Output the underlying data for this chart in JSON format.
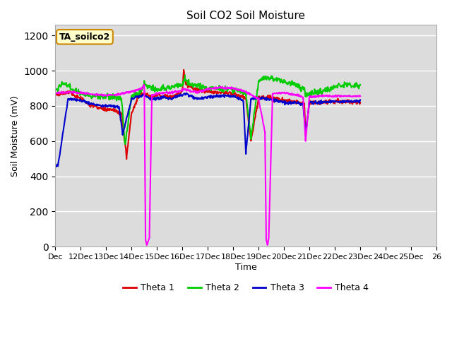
{
  "title": "Soil CO2 Soil Moisture",
  "ylabel": "Soil Moisture (mV)",
  "xlabel": "Time",
  "annotation": "TA_soilco2",
  "ylim": [
    0,
    1260
  ],
  "yticks": [
    0,
    200,
    400,
    600,
    800,
    1000,
    1200
  ],
  "xtick_labels": [
    "Dec",
    "12Dec",
    "13Dec",
    "14Dec",
    "15Dec",
    "16Dec",
    "17Dec",
    "18Dec",
    "19Dec",
    "20Dec",
    "21Dec",
    "22Dec",
    "23Dec",
    "24Dec",
    "25Dec",
    "26"
  ],
  "colors": {
    "theta1": "#dd0000",
    "theta2": "#00cc00",
    "theta3": "#0000cc",
    "theta4": "#ff00ff"
  },
  "legend_labels": [
    "Theta 1",
    "Theta 2",
    "Theta 3",
    "Theta 4"
  ],
  "plot_bg_color": "#dcdcdc",
  "annotation_bg": "#ffffcc",
  "annotation_border": "#cc8800",
  "grid_color": "#ffffff",
  "linewidth": 1.5
}
